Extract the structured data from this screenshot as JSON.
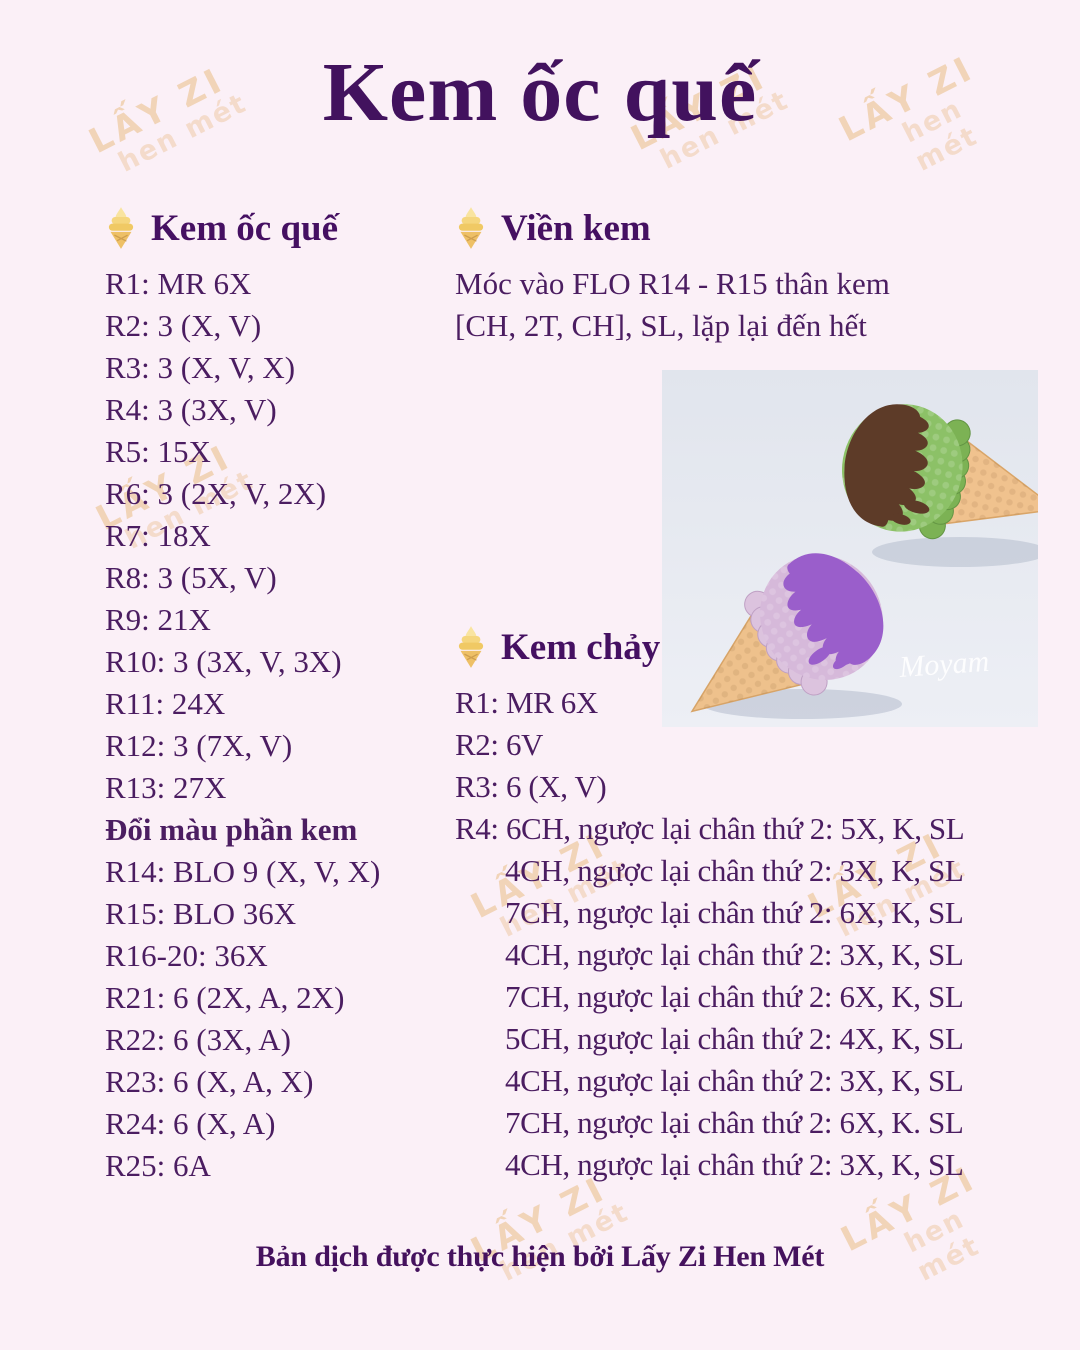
{
  "page": {
    "title": "Kem ốc quế",
    "footer": "Bản dịch được thực hiện bởi Lấy Zi Hen Mét"
  },
  "watermark": {
    "line1": "LẤY ZI",
    "line2": "hen mét"
  },
  "cone": {
    "title": "Kem ốc quế",
    "rows": [
      "R1: MR 6X",
      "R2: 3 (X, V)",
      "R3: 3 (X, V, X)",
      "R4: 3 (3X, V)",
      "R5: 15X",
      "R6: 3 (2X, V, 2X)",
      "R7: 18X",
      "R8: 3 (5X, V)",
      "R9: 21X",
      "R10: 3 (3X, V, 3X)",
      "R11: 24X",
      "R12: 3 (7X, V)",
      "R13: 27X"
    ],
    "subheading": "Đổi màu phần kem",
    "rows2": [
      "R14: BLO 9 (X, V, X)",
      "R15: BLO 36X",
      "R16-20: 36X",
      "R21: 6 (2X, A, 2X)",
      "R22: 6 (3X, A)",
      "R23: 6 (X, A, X)",
      "R24: 6 (X, A)",
      "R25: 6A"
    ]
  },
  "vien": {
    "title": "Viền kem",
    "lines": [
      "Móc vào FLO R14 - R15 thân kem",
      "[CH, 2T, CH], SL, lặp lại đến hết"
    ]
  },
  "chay": {
    "title": "Kem chảy",
    "rows": [
      "R1: MR 6X",
      "R2: 6V",
      "R3: 6 (X, V)",
      "R4: 6CH, ngược lại chân thứ 2: 5X, K, SL"
    ],
    "cont": [
      "4CH, ngược lại chân thứ 2: 3X, K, SL",
      "7CH, ngược lại chân thứ 2: 6X, K, SL",
      "4CH, ngược lại chân thứ 2: 3X, K, SL",
      "7CH, ngược lại chân thứ 2: 6X, K, SL",
      "5CH, ngược lại chân thứ 2: 4X, K, SL",
      "4CH, ngược lại chân thứ 2: 3X, K, SL",
      "7CH, ngược lại chân thứ 2: 6X, K. SL",
      "4CH, ngược lại chân thứ 2: 3X, K, SL"
    ]
  },
  "photo": {
    "watermark": "Moyam"
  },
  "colors": {
    "background": "#fbf0f7",
    "title": "#42125e",
    "text": "#4b1d61",
    "watermark": "#e7b77a",
    "photo_background": "#e4e8ef",
    "cone_tan": "#f0c28e",
    "scoop_green": "#8cc167",
    "drip_brown": "#5d3b28",
    "scoop_pink": "#d6b9da",
    "drip_purple": "#9a5ecb"
  }
}
